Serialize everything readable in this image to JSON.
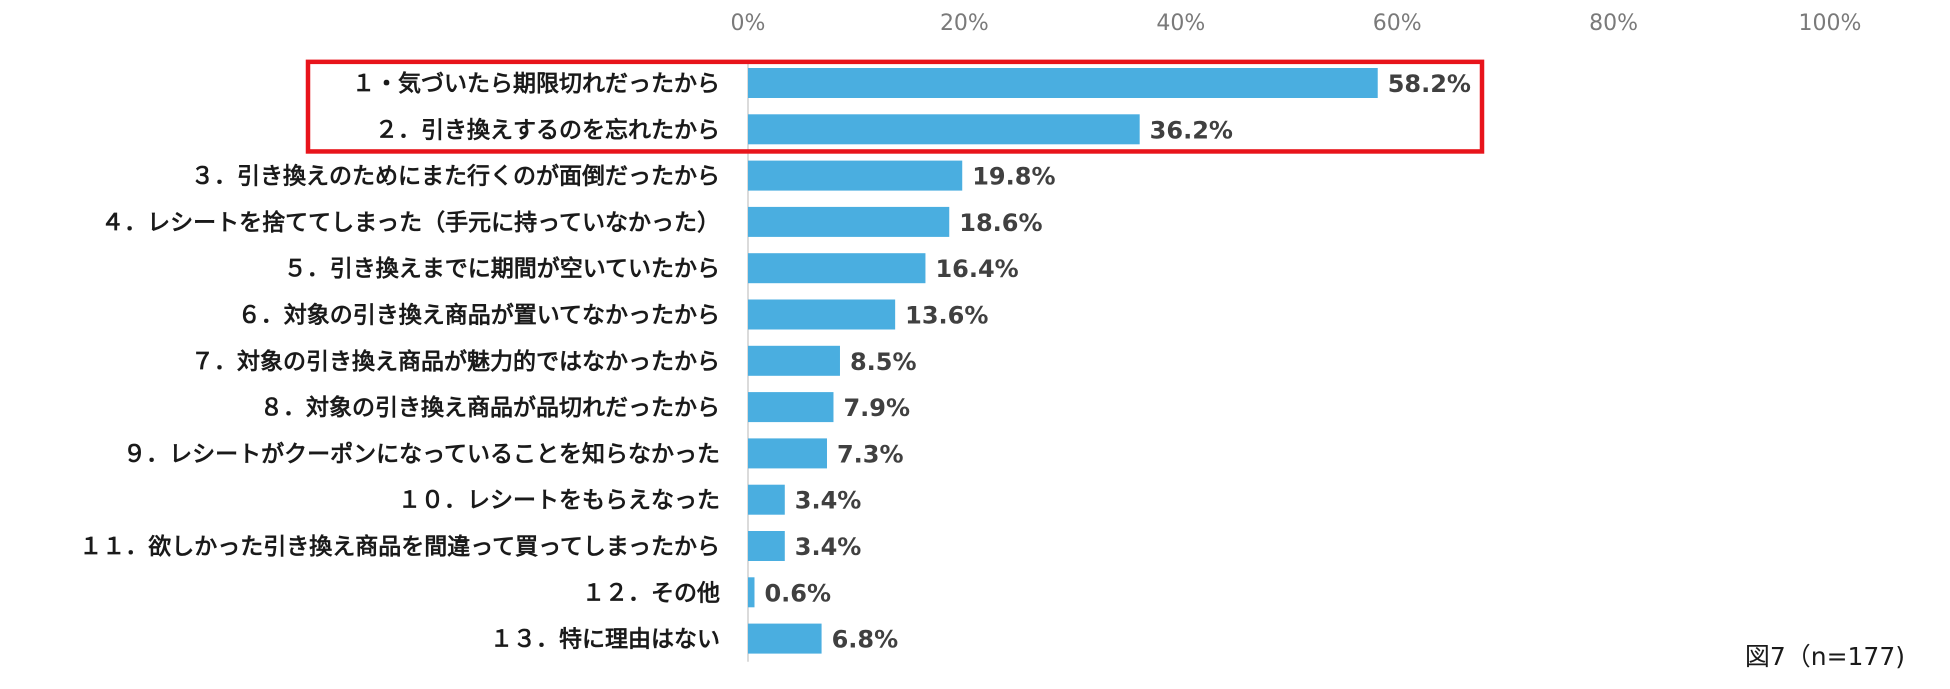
{
  "chart_data": {
    "type": "bar",
    "orientation": "horizontal",
    "categories": [
      "１・気づいたら期限切れだったから",
      "２．引き換えするのを忘れたから",
      "３．引き換えのためにまた行くのが面倒だったから",
      "４．レシートを捨ててしまった（手元に持っていなかった）",
      "５．引き換えまでに期間が空いていたから",
      "６．対象の引き換え商品が置いてなかったから",
      "７．対象の引き換え商品が魅力的ではなかったから",
      "８．対象の引き換え商品が品切れだったから",
      "９．レシートがクーポンになっていることを知らなかった",
      "１０．レシートをもらえなった",
      "１１．欲しかった引き換え商品を間違って買ってしまったから",
      "１２．その他",
      "１３．特に理由はない"
    ],
    "values": [
      58.2,
      36.2,
      19.8,
      18.6,
      16.4,
      13.6,
      8.5,
      7.9,
      7.3,
      3.4,
      3.4,
      0.6,
      6.8
    ],
    "value_labels": [
      "58.2%",
      "36.2%",
      "19.8%",
      "18.6%",
      "16.4%",
      "13.6%",
      "8.5%",
      "7.9%",
      "7.3%",
      "3.4%",
      "3.4%",
      "0.6%",
      "6.8%"
    ],
    "xlim": [
      0,
      100
    ],
    "x_ticks": [
      "0%",
      "20%",
      "40%",
      "60%",
      "80%",
      "100%"
    ],
    "x_tick_values": [
      0,
      20,
      40,
      60,
      80,
      100
    ],
    "axis_position": "top",
    "grid": false,
    "highlight": {
      "indices": [
        0,
        1
      ],
      "color": "#e8141b"
    },
    "bar_color": "#4aaee0",
    "caption": "図7（n=177)"
  }
}
